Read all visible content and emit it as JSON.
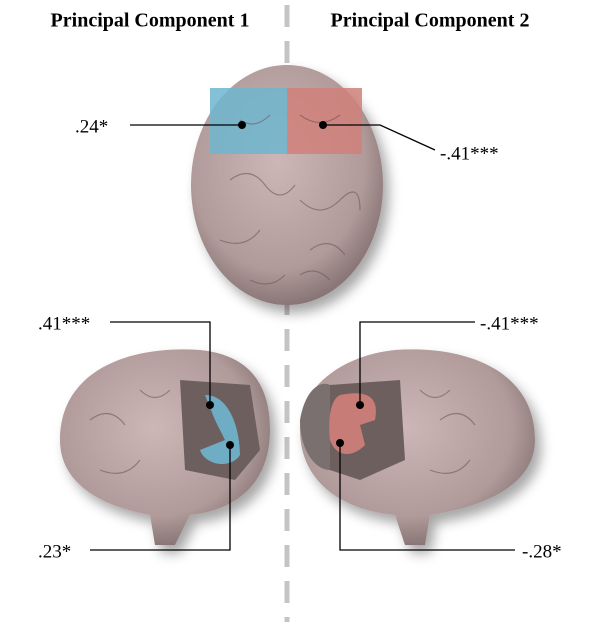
{
  "headers": [
    "Principal Component 1",
    "Principal Component 2"
  ],
  "annotations": [
    {
      "label": ".24*"
    },
    {
      "label": "-.41***"
    },
    {
      "label": ".41***"
    },
    {
      "label": ".23*"
    },
    {
      "label": "-.41***"
    },
    {
      "label": "-.28*"
    }
  ]
}
